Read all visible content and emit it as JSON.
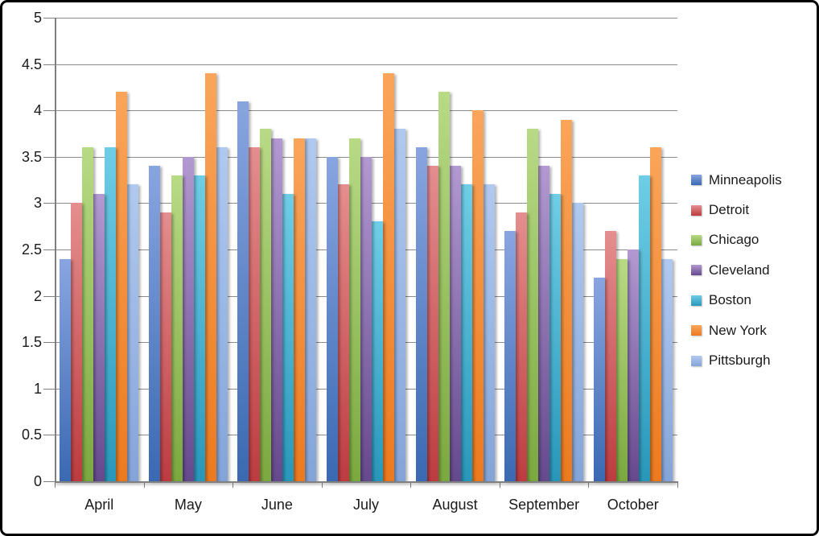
{
  "chart_data": {
    "type": "bar",
    "title": "",
    "xlabel": "",
    "ylabel": "",
    "categories": [
      "April",
      "May",
      "June",
      "July",
      "August",
      "September",
      "October"
    ],
    "series": [
      {
        "name": "Minneapolis",
        "color_top": "#89a5e0",
        "color_bottom": "#3a69b2",
        "values": [
          2.4,
          3.4,
          4.1,
          3.5,
          3.6,
          2.7,
          2.2
        ]
      },
      {
        "name": "Detroit",
        "color_top": "#e58e8f",
        "color_bottom": "#bc3c40",
        "values": [
          3.0,
          2.9,
          3.6,
          3.2,
          3.4,
          2.9,
          2.7
        ]
      },
      {
        "name": "Chicago",
        "color_top": "#b8da85",
        "color_bottom": "#7ba83f",
        "values": [
          3.6,
          3.3,
          3.8,
          3.7,
          4.2,
          3.8,
          2.4
        ]
      },
      {
        "name": "Cleveland",
        "color_top": "#b299d1",
        "color_bottom": "#65498d",
        "values": [
          3.1,
          3.5,
          3.7,
          3.5,
          3.4,
          3.4,
          2.5
        ]
      },
      {
        "name": "Boston",
        "color_top": "#6fcde6",
        "color_bottom": "#2997ba",
        "values": [
          3.6,
          3.3,
          3.1,
          2.8,
          3.2,
          3.1,
          3.3
        ]
      },
      {
        "name": "New York",
        "color_top": "#faa55b",
        "color_bottom": "#ec7a1f",
        "values": [
          4.2,
          4.4,
          3.7,
          4.4,
          4.0,
          3.9,
          3.6
        ]
      },
      {
        "name": "Pittsburgh",
        "color_top": "#b0c9f0",
        "color_bottom": "#84a4d8",
        "values": [
          3.2,
          3.6,
          3.7,
          3.8,
          3.2,
          3.0,
          2.4
        ]
      }
    ],
    "ylim": [
      0,
      5
    ],
    "ytick_step": 0.5,
    "grid": true,
    "legend_position": "right",
    "colors": {
      "gridline": "#8c8c8c",
      "axis": "#808080",
      "text": "#1a1a1a"
    }
  }
}
